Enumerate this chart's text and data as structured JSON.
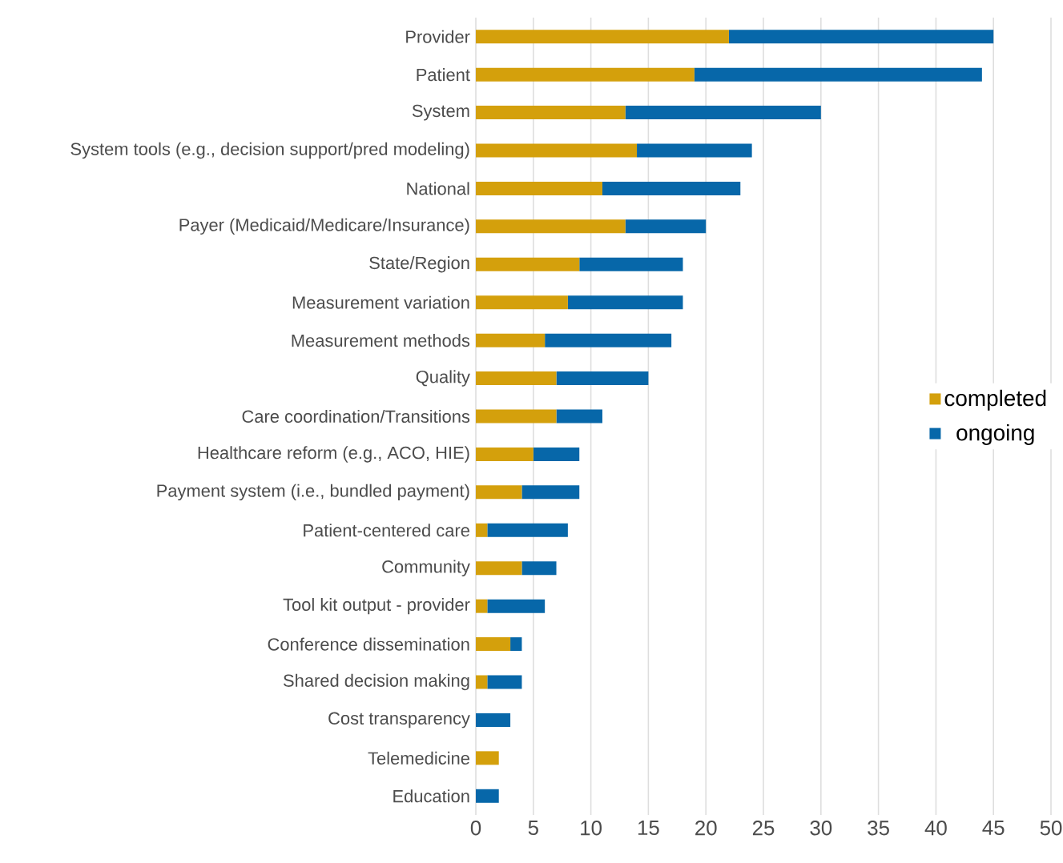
{
  "chart_data": {
    "type": "bar",
    "orientation": "horizontal",
    "stacked": true,
    "categories": [
      "Provider",
      "Patient",
      "System",
      "System tools (e.g., decision support/pred modeling)",
      "National",
      "Payer (Medicaid/Medicare/Insurance)",
      "State/Region",
      "Measurement variation",
      "Measurement methods",
      "Quality",
      "Care coordination/Transitions",
      "Healthcare reform (e.g., ACO, HIE)",
      "Payment system (i.e., bundled payment)",
      "Patient-centered care",
      "Community",
      "Tool kit output - provider",
      "Conference dissemination",
      "Shared decision making",
      "Cost transparency",
      "Telemedicine",
      "Education"
    ],
    "series": [
      {
        "name": "completed",
        "color": "#d4a00c",
        "values": [
          22,
          19,
          13,
          14,
          11,
          13,
          9,
          8,
          6,
          7,
          7,
          5,
          4,
          1,
          4,
          1,
          3,
          1,
          0,
          2,
          0
        ]
      },
      {
        "name": "ongoing",
        "color": "#0767a9",
        "values": [
          23,
          25,
          17,
          10,
          12,
          7,
          9,
          10,
          11,
          8,
          4,
          4,
          5,
          7,
          3,
          5,
          1,
          3,
          3,
          0,
          2
        ]
      }
    ],
    "xlim": [
      0,
      50
    ],
    "xticks": [
      0,
      5,
      10,
      15,
      20,
      25,
      30,
      35,
      40,
      45,
      50
    ],
    "grid": "x",
    "legend": "right"
  }
}
